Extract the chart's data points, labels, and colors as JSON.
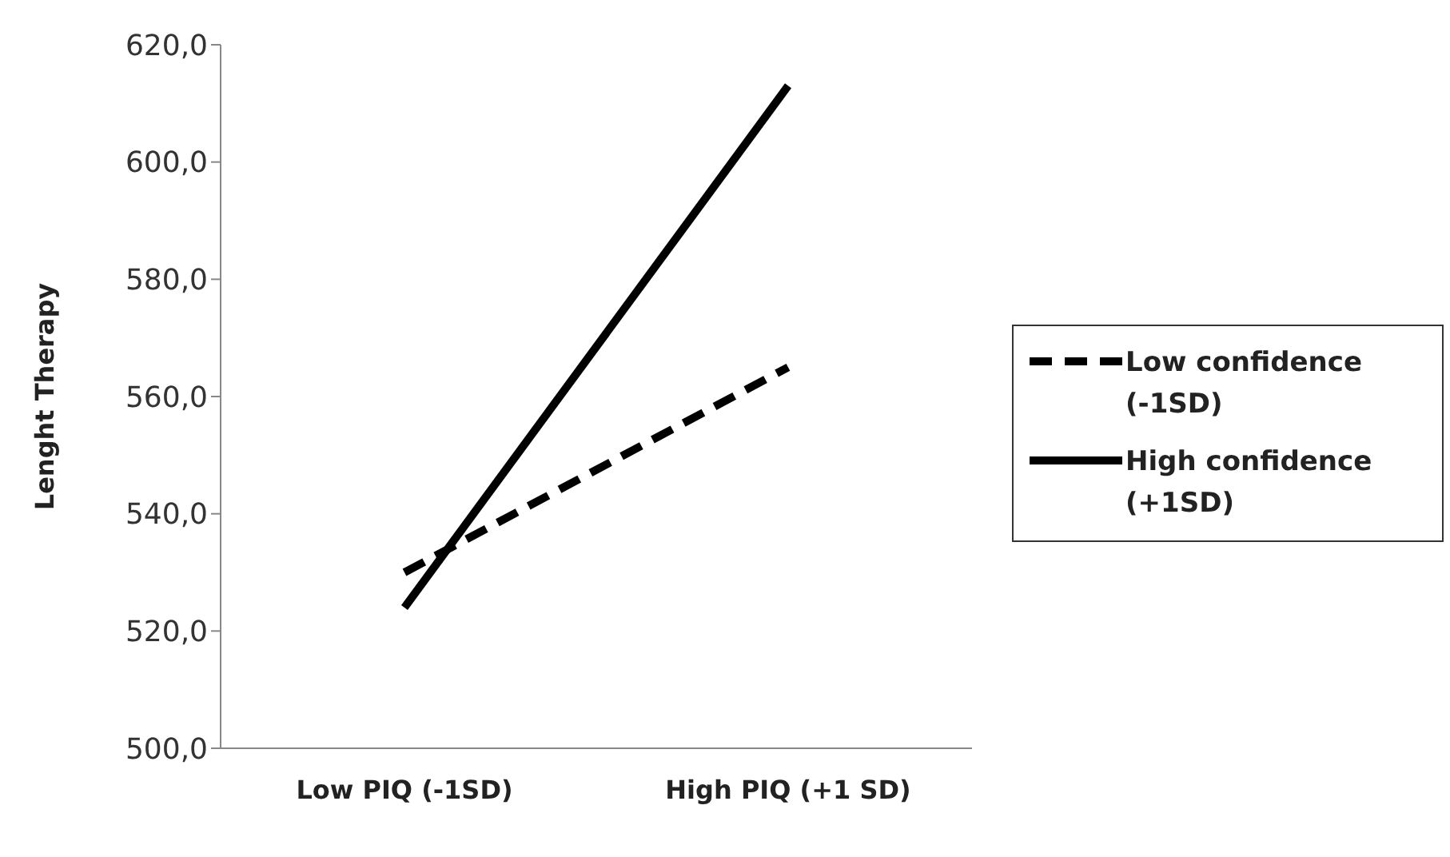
{
  "chart_data": {
    "type": "line",
    "ylabel": "Lenght Therapy",
    "categories": [
      "Low PIQ (-1SD)",
      "High PIQ (+1 SD)"
    ],
    "series": [
      {
        "name": "Low confidence (-1SD)",
        "color": "#000000",
        "line_style": "dashed",
        "values": [
          530,
          565
        ]
      },
      {
        "name": "High confidence (+1SD)",
        "color": "#000000",
        "line_style": "solid",
        "values": [
          524,
          613
        ]
      }
    ],
    "ylim": [
      500,
      620
    ],
    "yticks": [
      {
        "value": 500,
        "label": "500,0"
      },
      {
        "value": 520,
        "label": "520,0"
      },
      {
        "value": 540,
        "label": "540,0"
      },
      {
        "value": 560,
        "label": "560,0"
      },
      {
        "value": 580,
        "label": "580,0"
      },
      {
        "value": 600,
        "label": "600,0"
      },
      {
        "value": 620,
        "label": "620,0"
      }
    ],
    "grid": false,
    "legend": "right",
    "marker": "none"
  }
}
